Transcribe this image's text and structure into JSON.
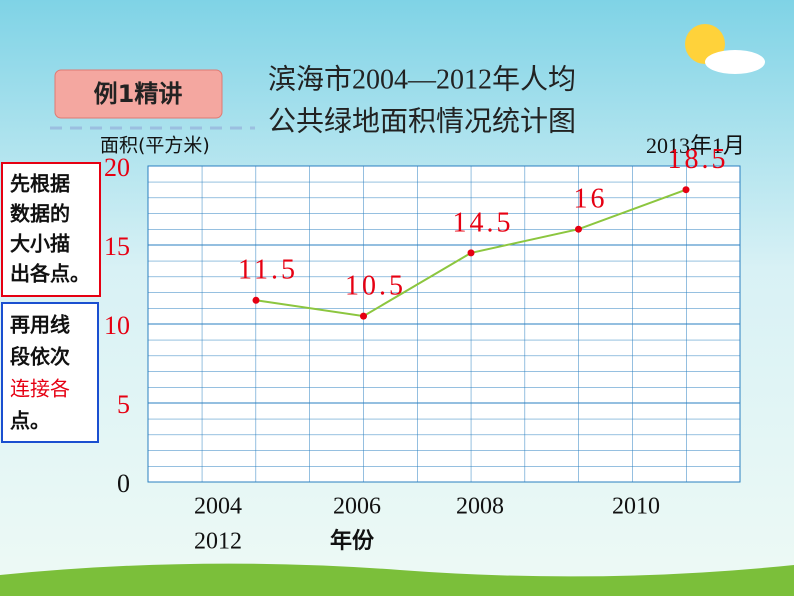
{
  "badge": "例1精讲",
  "title_lines": [
    "滨海市2004—2012年人均",
    "公共绿地面积情况统计图"
  ],
  "date_note": "2013年1月",
  "tip_boxes": [
    [
      "先根据",
      "数据的",
      "大小描",
      "出各点。"
    ],
    [
      "再用线",
      "段依次",
      "连接各",
      "点。"
    ]
  ],
  "chart_data": {
    "type": "line",
    "y_label": "面积(平方米)",
    "x_label": "年份",
    "x_labels": [
      "2004",
      "2006",
      "2008",
      "2010",
      "2012"
    ],
    "categories": [
      null,
      null,
      null,
      null,
      null
    ],
    "series": [
      {
        "name": null,
        "color": "#8cc63f",
        "point_color": "#e60012",
        "values": [
          11.5,
          10.5,
          14.5,
          16,
          18.5
        ],
        "value_labels": [
          "11.5",
          "10.5",
          "14.5",
          "16",
          "18.5"
        ]
      }
    ],
    "ylim": [
      0,
      20
    ],
    "yticks": [
      0,
      5,
      10,
      15,
      20
    ],
    "grid": true
  }
}
